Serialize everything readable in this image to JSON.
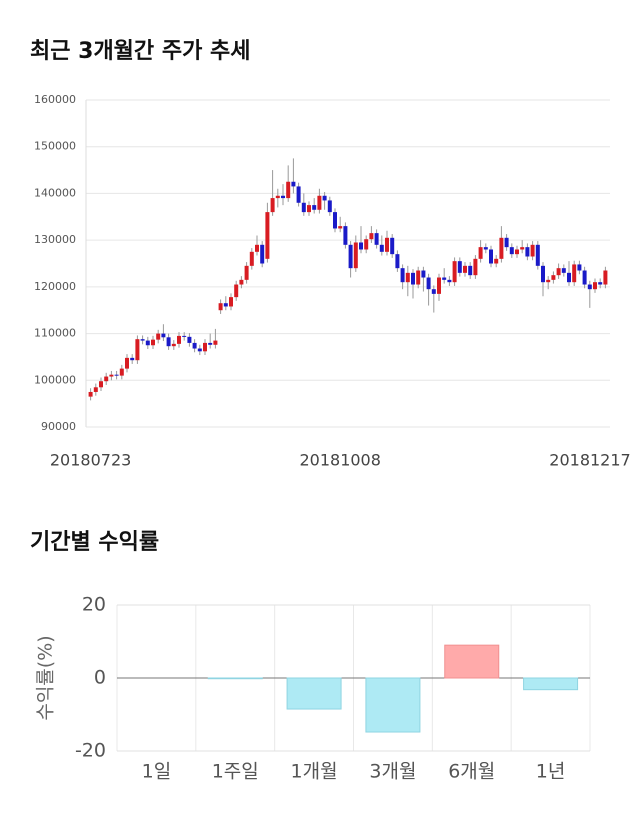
{
  "chart_data": [
    {
      "type": "candlestick",
      "title": "최근 3개월간 주가 추세",
      "categories": [
        "20180723",
        null,
        null,
        null,
        null,
        null,
        null,
        null,
        null,
        null,
        null,
        null,
        null,
        null,
        null,
        null,
        null,
        null,
        null,
        null,
        null,
        null,
        null,
        null,
        null,
        null,
        null,
        null,
        null,
        null,
        null,
        null,
        null,
        null,
        null,
        null,
        null,
        null,
        null,
        null,
        null,
        null,
        null,
        null,
        null,
        null,
        null,
        null,
        "20181008",
        null,
        null,
        null,
        null,
        null,
        null,
        null,
        null,
        null,
        null,
        null,
        null,
        null,
        null,
        null,
        null,
        null,
        null,
        null,
        null,
        null,
        null,
        null,
        null,
        null,
        null,
        null,
        null,
        null,
        null,
        null,
        null,
        null,
        null,
        null,
        null,
        null,
        null,
        null,
        null,
        null,
        null,
        null,
        null,
        null,
        null,
        null,
        null,
        null,
        null,
        "20181217"
      ],
      "ohlc": [
        [
          96500,
          98300,
          95700,
          97500
        ],
        [
          97500,
          99300,
          96700,
          98500
        ],
        [
          98500,
          100600,
          97700,
          99800
        ],
        [
          99800,
          101600,
          99000,
          100800
        ],
        [
          100800,
          102000,
          100000,
          101200
        ],
        [
          101200,
          102000,
          100200,
          101000
        ],
        [
          101000,
          103300,
          100200,
          102500
        ],
        [
          102500,
          105600,
          101700,
          104800
        ],
        [
          104800,
          105600,
          103500,
          104300
        ],
        [
          104300,
          109600,
          103500,
          108800
        ],
        [
          108800,
          109600,
          107700,
          108500
        ],
        [
          108500,
          109300,
          106700,
          107500
        ],
        [
          107500,
          109500,
          106700,
          108700
        ],
        [
          108700,
          110800,
          107900,
          110000
        ],
        [
          110000,
          112000,
          108400,
          109200
        ],
        [
          109200,
          110000,
          106500,
          107300
        ],
        [
          107300,
          108600,
          106500,
          107800
        ],
        [
          107800,
          110300,
          107000,
          109500
        ],
        [
          109500,
          110300,
          108500,
          109300
        ],
        [
          109300,
          110100,
          107200,
          108000
        ],
        [
          108000,
          108800,
          106000,
          106800
        ],
        [
          106800,
          107600,
          105400,
          106200
        ],
        [
          106200,
          108800,
          105400,
          108000
        ],
        [
          108000,
          110000,
          106800,
          107600
        ],
        [
          107600,
          111000,
          106800,
          108500
        ],
        [
          115000,
          117300,
          114200,
          116500
        ],
        [
          116500,
          118000,
          115000,
          115800
        ],
        [
          115800,
          118600,
          115000,
          117800
        ],
        [
          117800,
          121300,
          117000,
          120500
        ],
        [
          120500,
          122300,
          119700,
          121500
        ],
        [
          121500,
          125300,
          120700,
          124500
        ],
        [
          124500,
          128300,
          123700,
          127500
        ],
        [
          127500,
          131000,
          126700,
          129000
        ],
        [
          129000,
          129800,
          124200,
          125000
        ],
        [
          126000,
          138000,
          125200,
          136000
        ],
        [
          136000,
          145000,
          135200,
          139000
        ],
        [
          139000,
          141000,
          137000,
          139500
        ],
        [
          139500,
          142000,
          137500,
          139000
        ],
        [
          139000,
          146000,
          138200,
          142500
        ],
        [
          142500,
          147500,
          140000,
          141500
        ],
        [
          141500,
          142300,
          137200,
          138000
        ],
        [
          138000,
          140000,
          135200,
          136000
        ],
        [
          136000,
          138300,
          135200,
          137500
        ],
        [
          137500,
          139000,
          135700,
          136500
        ],
        [
          136500,
          141000,
          135700,
          139500
        ],
        [
          139500,
          140300,
          136500,
          138500
        ],
        [
          138500,
          139300,
          135200,
          136000
        ],
        [
          136000,
          136800,
          131700,
          132500
        ],
        [
          132500,
          135000,
          131700,
          133000
        ],
        [
          133000,
          133800,
          128200,
          129000
        ],
        [
          129000,
          129800,
          122000,
          124000
        ],
        [
          124000,
          131000,
          123200,
          129500
        ],
        [
          129500,
          133000,
          127200,
          128000
        ],
        [
          128000,
          131000,
          127200,
          130200
        ],
        [
          130200,
          133000,
          129400,
          131500
        ],
        [
          131500,
          132300,
          128200,
          129000
        ],
        [
          129000,
          131000,
          126700,
          127500
        ],
        [
          127500,
          132000,
          126700,
          130500
        ],
        [
          130500,
          131300,
          126200,
          127000
        ],
        [
          127000,
          127800,
          123200,
          124000
        ],
        [
          124000,
          124800,
          119500,
          121000
        ],
        [
          121000,
          124500,
          118000,
          123000
        ],
        [
          123000,
          123800,
          117500,
          120500
        ],
        [
          120500,
          124300,
          119700,
          123500
        ],
        [
          123500,
          124300,
          119000,
          122000
        ],
        [
          122000,
          122800,
          116000,
          119500
        ],
        [
          119500,
          120300,
          114500,
          118500
        ],
        [
          118500,
          122800,
          117000,
          122000
        ],
        [
          122000,
          124000,
          120700,
          121500
        ],
        [
          121500,
          122300,
          120200,
          121000
        ],
        [
          121000,
          126300,
          120200,
          125500
        ],
        [
          125500,
          126300,
          122200,
          123000
        ],
        [
          123000,
          125300,
          122200,
          124500
        ],
        [
          124500,
          125300,
          121700,
          122500
        ],
        [
          122500,
          126800,
          121700,
          126000
        ],
        [
          126000,
          130000,
          125200,
          128500
        ],
        [
          128500,
          129300,
          127200,
          128000
        ],
        [
          128000,
          128800,
          124200,
          125000
        ],
        [
          125000,
          126800,
          124200,
          126000
        ],
        [
          126000,
          133000,
          125200,
          130500
        ],
        [
          130500,
          131300,
          127700,
          128500
        ],
        [
          128500,
          129300,
          126200,
          127000
        ],
        [
          127000,
          128800,
          126200,
          128000
        ],
        [
          128000,
          130000,
          127200,
          128500
        ],
        [
          128500,
          129300,
          125700,
          126500
        ],
        [
          126500,
          129800,
          125700,
          129000
        ],
        [
          129000,
          129800,
          123700,
          124500
        ],
        [
          124500,
          125300,
          118000,
          121000
        ],
        [
          121000,
          122300,
          119500,
          121500
        ],
        [
          121500,
          123300,
          120700,
          122500
        ],
        [
          122500,
          125000,
          121700,
          124000
        ],
        [
          124000,
          124800,
          122200,
          123000
        ],
        [
          123000,
          125500,
          120200,
          121000
        ],
        [
          121000,
          125600,
          120200,
          124800
        ],
        [
          124800,
          125600,
          122700,
          123500
        ],
        [
          123500,
          124300,
          119700,
          120500
        ],
        [
          120500,
          121300,
          115500,
          119500
        ],
        [
          119500,
          121800,
          118700,
          121000
        ],
        [
          121000,
          121800,
          119700,
          120500
        ],
        [
          120500,
          124300,
          119700,
          123500
        ]
      ],
      "up_color": "#d81c22",
      "down_color": "#1a1ac8",
      "ylim": [
        90000,
        160000
      ],
      "yticks": [
        90000,
        100000,
        110000,
        120000,
        130000,
        140000,
        150000,
        160000
      ],
      "grid": true
    },
    {
      "type": "bar",
      "title": "기간별 수익률",
      "ylabel": "수익률(%)",
      "categories": [
        "1일",
        "1주일",
        "1개월",
        "3개월",
        "6개월",
        "1년"
      ],
      "values": [
        0,
        -0.2,
        -8.5,
        -14.8,
        9.0,
        -3.2
      ],
      "positive_color": "#ffaaaa",
      "negative_color": "#aeeaf4",
      "ylim": [
        -20,
        20
      ],
      "yticks": [
        -20,
        0,
        20
      ],
      "grid": true
    }
  ]
}
